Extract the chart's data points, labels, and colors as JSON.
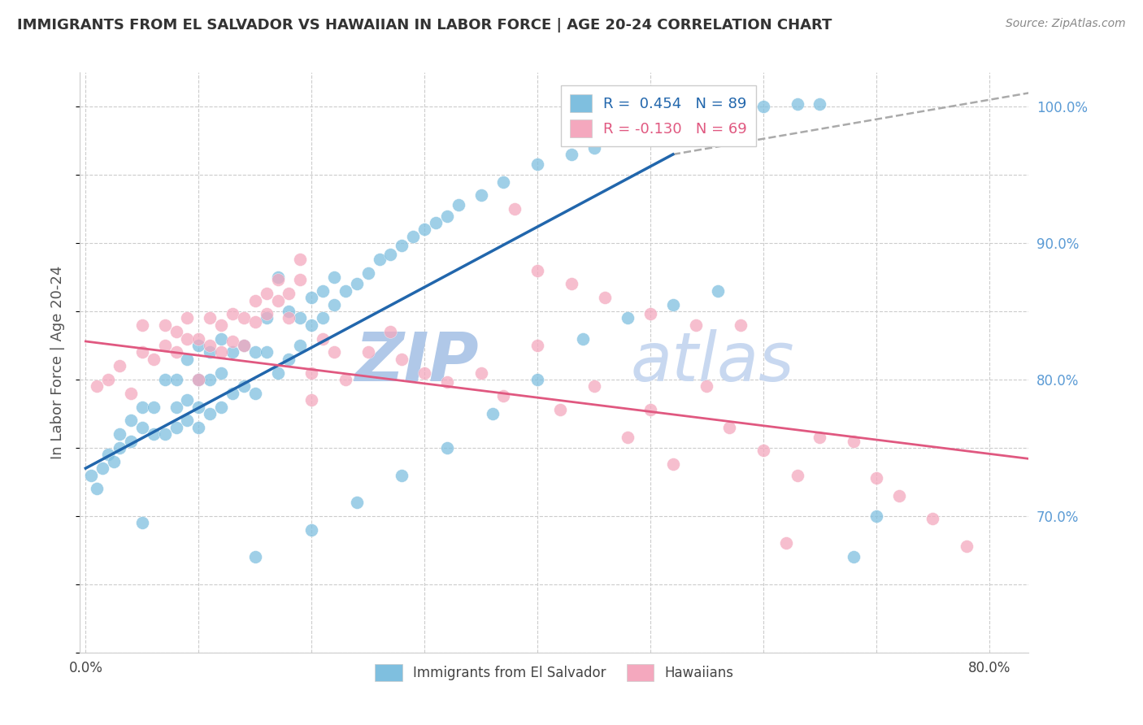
{
  "title": "IMMIGRANTS FROM EL SALVADOR VS HAWAIIAN IN LABOR FORCE | AGE 20-24 CORRELATION CHART",
  "source": "Source: ZipAtlas.com",
  "ylabel": "In Labor Force | Age 20-24",
  "legend_entry1": "R =  0.454   N = 89",
  "legend_entry2": "R = -0.130   N = 69",
  "legend_bottom1": "Immigrants from El Salvador",
  "legend_bottom2": "Hawaiians",
  "color_blue": "#7fbfdf",
  "color_blue_line": "#2166ac",
  "color_pink": "#f4a8be",
  "color_pink_line": "#e05880",
  "color_dashed": "#aaaaaa",
  "watermark_color": "#c8d8f0",
  "y_min": 0.6,
  "y_max": 1.025,
  "x_min": -0.005,
  "x_max": 0.835,
  "blue_line_x0": 0.0,
  "blue_line_x1": 0.52,
  "blue_line_y0": 0.735,
  "blue_line_y1": 0.965,
  "dashed_line_x0": 0.52,
  "dashed_line_x1": 0.835,
  "dashed_line_y0": 0.965,
  "dashed_line_y1": 1.01,
  "pink_line_x0": 0.0,
  "pink_line_x1": 0.835,
  "pink_line_y0": 0.828,
  "pink_line_y1": 0.742,
  "blue_x": [
    0.005,
    0.01,
    0.015,
    0.02,
    0.025,
    0.03,
    0.03,
    0.04,
    0.04,
    0.05,
    0.05,
    0.05,
    0.06,
    0.06,
    0.07,
    0.07,
    0.08,
    0.08,
    0.08,
    0.09,
    0.09,
    0.09,
    0.1,
    0.1,
    0.1,
    0.1,
    0.11,
    0.11,
    0.11,
    0.12,
    0.12,
    0.12,
    0.13,
    0.13,
    0.14,
    0.14,
    0.15,
    0.15,
    0.16,
    0.16,
    0.17,
    0.17,
    0.18,
    0.18,
    0.19,
    0.19,
    0.2,
    0.2,
    0.21,
    0.21,
    0.22,
    0.22,
    0.23,
    0.24,
    0.25,
    0.26,
    0.27,
    0.28,
    0.29,
    0.3,
    0.31,
    0.32,
    0.33,
    0.35,
    0.37,
    0.4,
    0.43,
    0.45,
    0.48,
    0.5,
    0.52,
    0.55,
    0.58,
    0.6,
    0.63,
    0.65,
    0.68,
    0.7,
    0.15,
    0.2,
    0.24,
    0.28,
    0.32,
    0.36,
    0.4,
    0.44,
    0.48,
    0.52,
    0.56
  ],
  "blue_y": [
    0.73,
    0.72,
    0.735,
    0.745,
    0.74,
    0.75,
    0.76,
    0.755,
    0.77,
    0.695,
    0.765,
    0.78,
    0.76,
    0.78,
    0.76,
    0.8,
    0.765,
    0.78,
    0.8,
    0.77,
    0.785,
    0.815,
    0.765,
    0.78,
    0.8,
    0.825,
    0.775,
    0.8,
    0.82,
    0.78,
    0.805,
    0.83,
    0.79,
    0.82,
    0.795,
    0.825,
    0.79,
    0.82,
    0.82,
    0.845,
    0.805,
    0.875,
    0.815,
    0.85,
    0.825,
    0.845,
    0.84,
    0.86,
    0.845,
    0.865,
    0.855,
    0.875,
    0.865,
    0.87,
    0.878,
    0.888,
    0.892,
    0.898,
    0.905,
    0.91,
    0.915,
    0.92,
    0.928,
    0.935,
    0.945,
    0.958,
    0.965,
    0.97,
    0.978,
    0.985,
    0.99,
    0.995,
    0.998,
    1.0,
    1.002,
    1.002,
    0.67,
    0.7,
    0.67,
    0.69,
    0.71,
    0.73,
    0.75,
    0.775,
    0.8,
    0.83,
    0.845,
    0.855,
    0.865
  ],
  "pink_x": [
    0.01,
    0.02,
    0.03,
    0.04,
    0.05,
    0.05,
    0.06,
    0.07,
    0.07,
    0.08,
    0.08,
    0.09,
    0.09,
    0.1,
    0.1,
    0.11,
    0.11,
    0.12,
    0.12,
    0.13,
    0.13,
    0.14,
    0.14,
    0.15,
    0.15,
    0.16,
    0.16,
    0.17,
    0.17,
    0.18,
    0.18,
    0.19,
    0.19,
    0.2,
    0.2,
    0.21,
    0.22,
    0.23,
    0.25,
    0.27,
    0.28,
    0.3,
    0.32,
    0.35,
    0.37,
    0.4,
    0.42,
    0.45,
    0.48,
    0.5,
    0.52,
    0.55,
    0.57,
    0.6,
    0.63,
    0.65,
    0.68,
    0.7,
    0.72,
    0.75,
    0.78,
    0.38,
    0.4,
    0.43,
    0.46,
    0.5,
    0.54,
    0.58,
    0.62
  ],
  "pink_y": [
    0.795,
    0.8,
    0.81,
    0.79,
    0.82,
    0.84,
    0.815,
    0.825,
    0.84,
    0.82,
    0.835,
    0.83,
    0.845,
    0.8,
    0.83,
    0.825,
    0.845,
    0.82,
    0.84,
    0.828,
    0.848,
    0.825,
    0.845,
    0.842,
    0.858,
    0.848,
    0.863,
    0.858,
    0.873,
    0.845,
    0.863,
    0.873,
    0.888,
    0.785,
    0.805,
    0.83,
    0.82,
    0.8,
    0.82,
    0.835,
    0.815,
    0.805,
    0.798,
    0.805,
    0.788,
    0.825,
    0.778,
    0.795,
    0.758,
    0.778,
    0.738,
    0.795,
    0.765,
    0.748,
    0.73,
    0.758,
    0.755,
    0.728,
    0.715,
    0.698,
    0.678,
    0.925,
    0.88,
    0.87,
    0.86,
    0.848,
    0.84,
    0.84,
    0.68
  ]
}
